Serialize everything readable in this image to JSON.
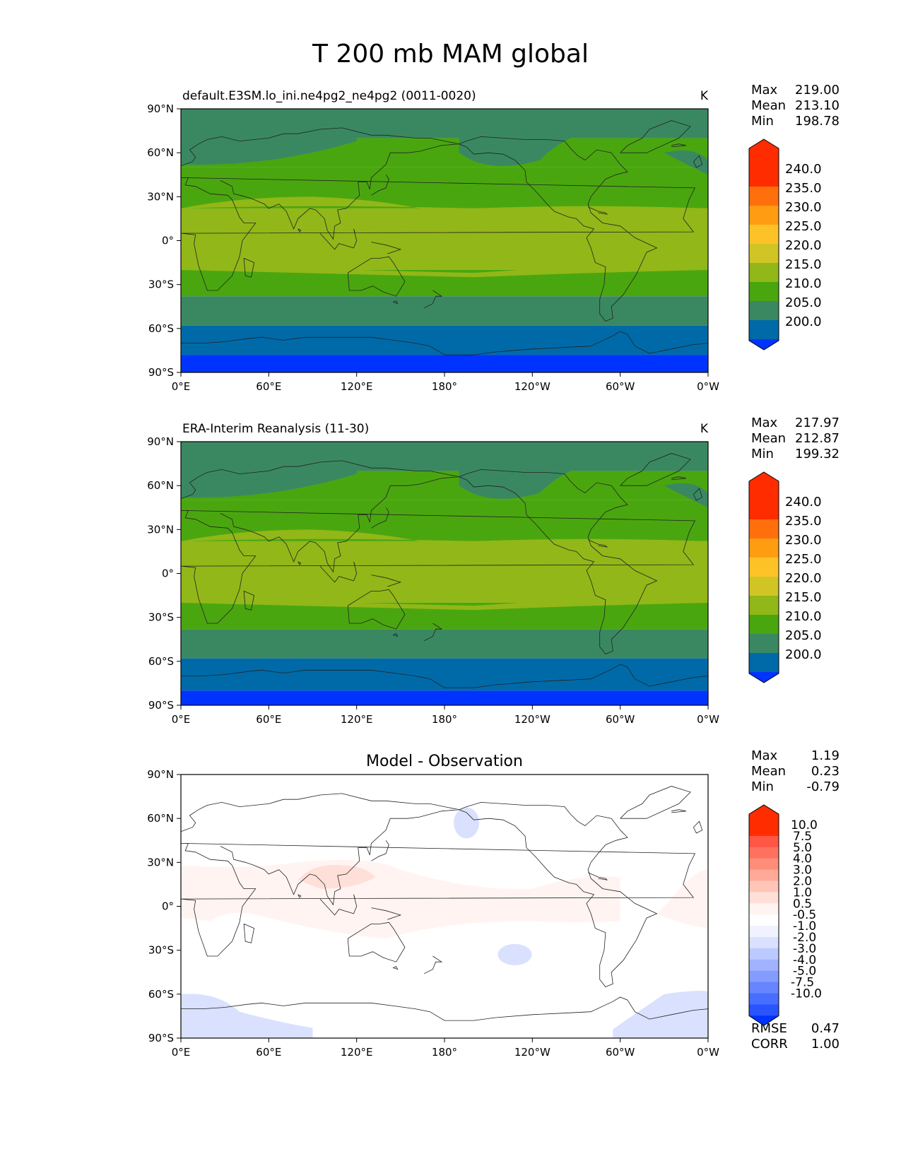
{
  "page": {
    "title": "T 200 mb MAM global"
  },
  "lon_ticks": [
    "0°E",
    "60°E",
    "120°E",
    "180°",
    "120°W",
    "60°W",
    "0°W"
  ],
  "lat_ticks": [
    "90°N",
    "60°N",
    "30°N",
    "0°",
    "30°S",
    "60°S",
    "90°S"
  ],
  "stat_labels": {
    "max": "Max",
    "mean": "Mean",
    "min": "Min",
    "rmse": "RMSE",
    "corr": "CORR"
  },
  "colors": {
    "c_lt200": "#0033ff",
    "c_200": "#006aa8",
    "c_205": "#3a8862",
    "c_210": "#4aa60f",
    "c_215": "#92b718",
    "c_220": "#d1c525",
    "c_225": "#fdc326",
    "c_230": "#ff9c12",
    "c_235": "#ff6f0c",
    "c_240": "#ff2c00",
    "d_lt_m10": "#0033ff",
    "d_m10": "#2a54ff",
    "d_m75": "#486eff",
    "d_m5": "#6685ff",
    "d_m4": "#859cff",
    "d_m3": "#a1b2ff",
    "d_m2": "#bccaff",
    "d_m1": "#d9e1ff",
    "d_m05": "#f0f3ff",
    "d_0": "#ffffff",
    "d_05": "#fff4f1",
    "d_1": "#ffe0d9",
    "d_2": "#ffc6b8",
    "d_3": "#ffa998",
    "d_4": "#ff8d7a",
    "d_5": "#ff715f",
    "d_75": "#ff5646",
    "d_10": "#ff2c00"
  },
  "chart_data": [
    {
      "type": "heatmap",
      "title": "default.E3SM.lo_ini.ne4pg2_ne4pg2 (0011-0020)",
      "units": "K",
      "xlim": [
        0,
        360
      ],
      "ylim": [
        -90,
        90
      ],
      "stats": {
        "max": "219.00",
        "mean": "213.10",
        "min": "198.78"
      },
      "levels": [
        "200.0",
        "205.0",
        "210.0",
        "215.0",
        "220.0",
        "225.0",
        "230.0",
        "235.0",
        "240.0"
      ],
      "bands": [
        {
          "lat": [
            90,
            70
          ],
          "value_range": "205-210"
        },
        {
          "lat": [
            70,
            50
          ],
          "value_range": "210-215"
        },
        {
          "lat": [
            50,
            22
          ],
          "value_range": "210-215"
        },
        {
          "lat": [
            22,
            -20
          ],
          "value_range": "215-220"
        },
        {
          "lat": [
            -20,
            -38
          ],
          "value_range": "210-215"
        },
        {
          "lat": [
            -38,
            -58
          ],
          "value_range": "205-210"
        },
        {
          "lat": [
            -58,
            -78
          ],
          "value_range": "200-205"
        },
        {
          "lat": [
            -78,
            -90
          ],
          "value_range": "<200"
        }
      ]
    },
    {
      "type": "heatmap",
      "title": "ERA-Interim Reanalysis (11-30)",
      "units": "K",
      "xlim": [
        0,
        360
      ],
      "ylim": [
        -90,
        90
      ],
      "stats": {
        "max": "217.97",
        "mean": "212.87",
        "min": "199.32"
      },
      "levels": [
        "200.0",
        "205.0",
        "210.0",
        "215.0",
        "220.0",
        "225.0",
        "230.0",
        "235.0",
        "240.0"
      ],
      "bands": [
        {
          "lat": [
            90,
            70
          ],
          "value_range": "205-210"
        },
        {
          "lat": [
            70,
            50
          ],
          "value_range": "210-215"
        },
        {
          "lat": [
            50,
            22
          ],
          "value_range": "210-215"
        },
        {
          "lat": [
            22,
            -20
          ],
          "value_range": "215-220"
        },
        {
          "lat": [
            -20,
            -38
          ],
          "value_range": "210-215"
        },
        {
          "lat": [
            -38,
            -58
          ],
          "value_range": "205-210"
        },
        {
          "lat": [
            -58,
            -80
          ],
          "value_range": "200-205"
        },
        {
          "lat": [
            -80,
            -90
          ],
          "value_range": "<200"
        }
      ]
    },
    {
      "type": "heatmap",
      "title": "Model - Observation",
      "xlim": [
        0,
        360
      ],
      "ylim": [
        -90,
        90
      ],
      "stats": {
        "max": "1.19",
        "mean": "0.23",
        "min": "-0.79",
        "rmse": "0.47",
        "corr": "1.00"
      },
      "levels": [
        "-10.0",
        "-7.5",
        "-5.0",
        "-4.0",
        "-3.0",
        "-2.0",
        "-1.0",
        "-0.5",
        "0.5",
        "1.0",
        "2.0",
        "3.0",
        "4.0",
        "5.0",
        "7.5",
        "10.0"
      ],
      "features": [
        {
          "region": "tropical warm belt",
          "value_range": "0.5-1.0"
        },
        {
          "region": "Asia/W. Pacific core",
          "value_range": "1.0-2.0"
        },
        {
          "region": "N. Pacific 60N",
          "value_range": "-1.0--0.5"
        },
        {
          "region": "S. Pacific 30S",
          "value_range": "-1.0--0.5"
        },
        {
          "region": "Antarctic edges",
          "value_range": "-1.0--0.5"
        }
      ]
    }
  ]
}
